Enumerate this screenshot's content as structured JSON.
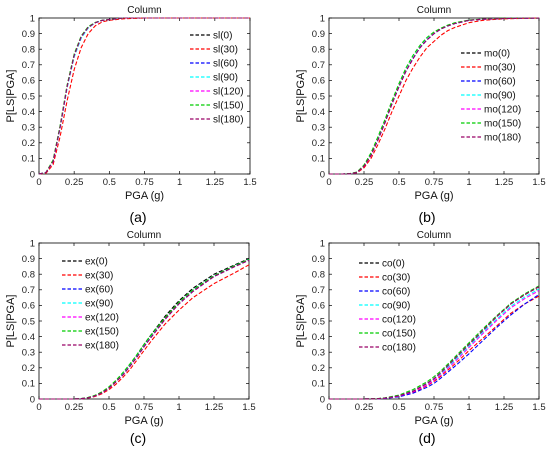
{
  "colors": {
    "series": [
      "#000000",
      "#ff0000",
      "#0000ff",
      "#00ffff",
      "#ff00ff",
      "#00cc00",
      "#990066"
    ]
  },
  "chart_data": [
    {
      "type": "line",
      "panel_label": "(a)",
      "title": "Column",
      "xlabel": "PGA (g)",
      "ylabel": "P[LS|PGA]",
      "xlim": [
        0,
        1.5
      ],
      "ylim": [
        0,
        1
      ],
      "xticks": [
        "0",
        "0.25",
        "0.5",
        "0.75",
        "1",
        "1.25",
        "1.5"
      ],
      "yticks": [
        "0",
        "0.1",
        "0.2",
        "0.3",
        "0.4",
        "0.5",
        "0.6",
        "0.7",
        "0.8",
        "0.9",
        "1"
      ],
      "legend": "top-right",
      "line_style": "dashed",
      "grid": false,
      "x": [
        0,
        0.05,
        0.1,
        0.15,
        0.2,
        0.25,
        0.3,
        0.35,
        0.4,
        0.45,
        0.5,
        0.6,
        0.75,
        1,
        1.25,
        1.5
      ],
      "series": [
        {
          "name": "sl(0)",
          "values": [
            0,
            0.01,
            0.08,
            0.3,
            0.56,
            0.76,
            0.88,
            0.94,
            0.97,
            0.985,
            0.99,
            1,
            1,
            1,
            1,
            1
          ]
        },
        {
          "name": "sl(30)",
          "values": [
            0,
            0.005,
            0.06,
            0.24,
            0.47,
            0.67,
            0.81,
            0.9,
            0.95,
            0.975,
            0.985,
            0.995,
            1,
            1,
            1,
            1
          ]
        },
        {
          "name": "sl(60)",
          "values": [
            0,
            0.01,
            0.08,
            0.3,
            0.56,
            0.76,
            0.88,
            0.94,
            0.97,
            0.985,
            0.99,
            1,
            1,
            1,
            1,
            1
          ]
        },
        {
          "name": "sl(90)",
          "values": [
            0,
            0.01,
            0.08,
            0.29,
            0.55,
            0.75,
            0.87,
            0.935,
            0.97,
            0.985,
            0.99,
            1,
            1,
            1,
            1,
            1
          ]
        },
        {
          "name": "sl(120)",
          "values": [
            0,
            0.01,
            0.08,
            0.3,
            0.56,
            0.76,
            0.88,
            0.94,
            0.97,
            0.985,
            0.99,
            1,
            1,
            1,
            1,
            1
          ]
        },
        {
          "name": "sl(150)",
          "values": [
            0,
            0.01,
            0.09,
            0.31,
            0.57,
            0.77,
            0.885,
            0.945,
            0.972,
            0.986,
            0.99,
            1,
            1,
            1,
            1,
            1
          ]
        },
        {
          "name": "sl(180)",
          "values": [
            0,
            0.01,
            0.08,
            0.3,
            0.56,
            0.76,
            0.88,
            0.94,
            0.97,
            0.985,
            0.99,
            1,
            1,
            1,
            1,
            1
          ]
        }
      ]
    },
    {
      "type": "line",
      "panel_label": "(b)",
      "title": "Column",
      "xlabel": "PGA (g)",
      "ylabel": "P[LS|PGA]",
      "xlim": [
        0,
        1.5
      ],
      "ylim": [
        0,
        1
      ],
      "xticks": [
        "0",
        "0.25",
        "0.5",
        "0.75",
        "1",
        "1.25",
        "1.5"
      ],
      "yticks": [
        "0",
        "0.1",
        "0.2",
        "0.3",
        "0.4",
        "0.5",
        "0.6",
        "0.7",
        "0.8",
        "0.9",
        "1"
      ],
      "legend": "right",
      "line_style": "dashed",
      "grid": false,
      "x": [
        0,
        0.1,
        0.15,
        0.2,
        0.25,
        0.3,
        0.35,
        0.4,
        0.45,
        0.5,
        0.55,
        0.6,
        0.65,
        0.7,
        0.75,
        0.8,
        0.85,
        0.9,
        1,
        1.1,
        1.25,
        1.5
      ],
      "series": [
        {
          "name": "mo(0)",
          "values": [
            0,
            0,
            0.002,
            0.01,
            0.05,
            0.12,
            0.22,
            0.33,
            0.45,
            0.56,
            0.66,
            0.74,
            0.81,
            0.86,
            0.9,
            0.93,
            0.95,
            0.965,
            0.985,
            0.992,
            0.997,
            1
          ]
        },
        {
          "name": "mo(30)",
          "values": [
            0,
            0,
            0.001,
            0.008,
            0.04,
            0.1,
            0.19,
            0.29,
            0.4,
            0.5,
            0.6,
            0.68,
            0.75,
            0.81,
            0.85,
            0.89,
            0.92,
            0.94,
            0.97,
            0.985,
            0.995,
            1
          ]
        },
        {
          "name": "mo(60)",
          "values": [
            0,
            0,
            0.002,
            0.01,
            0.05,
            0.12,
            0.22,
            0.33,
            0.45,
            0.56,
            0.66,
            0.74,
            0.81,
            0.86,
            0.9,
            0.93,
            0.95,
            0.965,
            0.985,
            0.992,
            0.997,
            1
          ]
        },
        {
          "name": "mo(90)",
          "values": [
            0,
            0,
            0.002,
            0.011,
            0.052,
            0.125,
            0.225,
            0.335,
            0.455,
            0.565,
            0.665,
            0.745,
            0.815,
            0.865,
            0.9,
            0.93,
            0.95,
            0.965,
            0.985,
            0.992,
            0.997,
            1
          ]
        },
        {
          "name": "mo(120)",
          "values": [
            0,
            0,
            0.002,
            0.01,
            0.05,
            0.12,
            0.22,
            0.33,
            0.45,
            0.56,
            0.66,
            0.74,
            0.81,
            0.86,
            0.9,
            0.93,
            0.95,
            0.965,
            0.985,
            0.992,
            0.997,
            1
          ]
        },
        {
          "name": "mo(150)",
          "values": [
            0,
            0,
            0.003,
            0.013,
            0.058,
            0.135,
            0.24,
            0.35,
            0.47,
            0.58,
            0.68,
            0.76,
            0.825,
            0.875,
            0.91,
            0.935,
            0.955,
            0.97,
            0.987,
            0.993,
            0.998,
            1
          ]
        },
        {
          "name": "mo(180)",
          "values": [
            0,
            0,
            0.002,
            0.01,
            0.05,
            0.12,
            0.22,
            0.33,
            0.45,
            0.56,
            0.66,
            0.74,
            0.81,
            0.86,
            0.9,
            0.93,
            0.95,
            0.965,
            0.985,
            0.992,
            0.997,
            1
          ]
        }
      ]
    },
    {
      "type": "line",
      "panel_label": "(c)",
      "title": "Column",
      "xlabel": "PGA (g)",
      "ylabel": "P[LS|PGA]",
      "xlim": [
        0,
        1.5
      ],
      "ylim": [
        0,
        1
      ],
      "xticks": [
        "0",
        "0.25",
        "0.5",
        "0.75",
        "1",
        "1.25",
        "1.5"
      ],
      "yticks": [
        "0",
        "0.1",
        "0.2",
        "0.3",
        "0.4",
        "0.5",
        "0.6",
        "0.7",
        "0.8",
        "0.9",
        "1"
      ],
      "legend": "top-left",
      "line_style": "dashed",
      "grid": false,
      "x": [
        0,
        0.25,
        0.3,
        0.35,
        0.4,
        0.45,
        0.5,
        0.55,
        0.6,
        0.65,
        0.7,
        0.75,
        0.8,
        0.9,
        1,
        1.1,
        1.25,
        1.4,
        1.5
      ],
      "series": [
        {
          "name": "ex(0)",
          "values": [
            0,
            0,
            0.002,
            0.008,
            0.02,
            0.04,
            0.07,
            0.11,
            0.16,
            0.22,
            0.28,
            0.35,
            0.41,
            0.53,
            0.63,
            0.71,
            0.8,
            0.86,
            0.9
          ]
        },
        {
          "name": "ex(30)",
          "values": [
            0,
            0,
            0.001,
            0.006,
            0.016,
            0.034,
            0.06,
            0.095,
            0.14,
            0.19,
            0.25,
            0.31,
            0.37,
            0.48,
            0.57,
            0.65,
            0.74,
            0.81,
            0.86
          ]
        },
        {
          "name": "ex(60)",
          "values": [
            0,
            0,
            0.002,
            0.008,
            0.02,
            0.04,
            0.07,
            0.11,
            0.155,
            0.21,
            0.27,
            0.335,
            0.395,
            0.51,
            0.61,
            0.69,
            0.785,
            0.85,
            0.89
          ]
        },
        {
          "name": "ex(90)",
          "values": [
            0,
            0,
            0.002,
            0.008,
            0.02,
            0.04,
            0.07,
            0.11,
            0.16,
            0.215,
            0.275,
            0.34,
            0.4,
            0.515,
            0.615,
            0.7,
            0.79,
            0.855,
            0.895
          ]
        },
        {
          "name": "ex(120)",
          "values": [
            0,
            0,
            0.002,
            0.008,
            0.02,
            0.04,
            0.07,
            0.11,
            0.155,
            0.21,
            0.27,
            0.335,
            0.395,
            0.51,
            0.61,
            0.69,
            0.785,
            0.85,
            0.89
          ]
        },
        {
          "name": "ex(150)",
          "values": [
            0,
            0,
            0.003,
            0.01,
            0.024,
            0.046,
            0.078,
            0.12,
            0.17,
            0.225,
            0.285,
            0.35,
            0.41,
            0.52,
            0.62,
            0.7,
            0.79,
            0.855,
            0.895
          ]
        },
        {
          "name": "ex(180)",
          "values": [
            0,
            0,
            0.002,
            0.008,
            0.02,
            0.04,
            0.07,
            0.11,
            0.155,
            0.21,
            0.27,
            0.335,
            0.395,
            0.51,
            0.61,
            0.69,
            0.785,
            0.85,
            0.89
          ]
        }
      ]
    },
    {
      "type": "line",
      "panel_label": "(d)",
      "title": "Column",
      "xlabel": "PGA (g)",
      "ylabel": "P[LS|PGA]",
      "xlim": [
        0,
        1.5
      ],
      "ylim": [
        0,
        1
      ],
      "xticks": [
        "0",
        "0.25",
        "0.5",
        "0.75",
        "1",
        "1.25",
        "1.5"
      ],
      "yticks": [
        "0",
        "0.1",
        "0.2",
        "0.3",
        "0.4",
        "0.5",
        "0.6",
        "0.7",
        "0.8",
        "0.9",
        "1"
      ],
      "legend": "top-left",
      "line_style": "dashed",
      "grid": false,
      "x": [
        0,
        0.25,
        0.35,
        0.4,
        0.5,
        0.6,
        0.7,
        0.75,
        0.8,
        0.9,
        1,
        1.1,
        1.2,
        1.25,
        1.3,
        1.4,
        1.5
      ],
      "series": [
        {
          "name": "co(0)",
          "values": [
            0,
            0,
            0.002,
            0.006,
            0.02,
            0.05,
            0.1,
            0.13,
            0.17,
            0.26,
            0.35,
            0.44,
            0.53,
            0.57,
            0.61,
            0.67,
            0.72
          ]
        },
        {
          "name": "co(30)",
          "values": [
            0,
            0,
            0.002,
            0.005,
            0.017,
            0.043,
            0.085,
            0.113,
            0.147,
            0.225,
            0.31,
            0.39,
            0.47,
            0.51,
            0.55,
            0.61,
            0.66
          ]
        },
        {
          "name": "co(60)",
          "values": [
            0,
            0,
            0.001,
            0.004,
            0.014,
            0.037,
            0.075,
            0.1,
            0.135,
            0.21,
            0.29,
            0.375,
            0.46,
            0.5,
            0.54,
            0.61,
            0.67
          ]
        },
        {
          "name": "co(90)",
          "values": [
            0,
            0,
            0.002,
            0.006,
            0.02,
            0.05,
            0.097,
            0.127,
            0.163,
            0.25,
            0.34,
            0.43,
            0.515,
            0.555,
            0.595,
            0.655,
            0.705
          ]
        },
        {
          "name": "co(120)",
          "values": [
            0,
            0,
            0.002,
            0.005,
            0.018,
            0.046,
            0.09,
            0.12,
            0.155,
            0.24,
            0.33,
            0.42,
            0.505,
            0.545,
            0.585,
            0.645,
            0.695
          ]
        },
        {
          "name": "co(150)",
          "values": [
            0,
            0,
            0.003,
            0.008,
            0.025,
            0.06,
            0.11,
            0.143,
            0.18,
            0.27,
            0.36,
            0.45,
            0.535,
            0.575,
            0.615,
            0.675,
            0.725
          ]
        },
        {
          "name": "co(180)",
          "values": [
            0,
            0,
            0.002,
            0.006,
            0.02,
            0.05,
            0.1,
            0.13,
            0.17,
            0.26,
            0.35,
            0.44,
            0.53,
            0.57,
            0.61,
            0.67,
            0.72
          ]
        }
      ]
    }
  ]
}
